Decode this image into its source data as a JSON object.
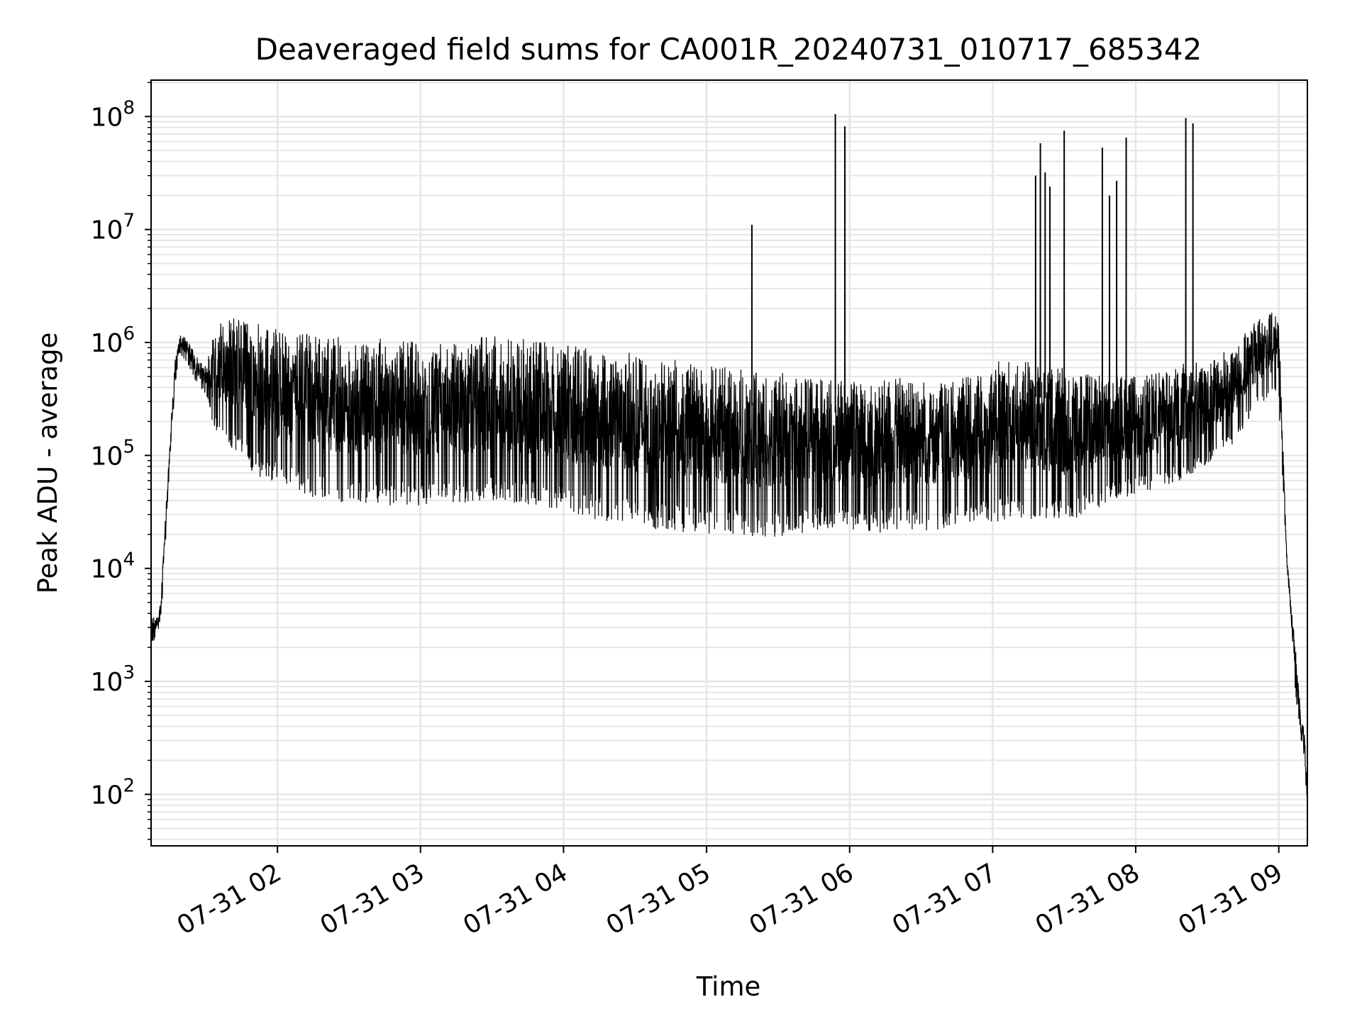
{
  "chart_data": {
    "type": "line",
    "title": "Deaveraged field sums for CA001R_20240731_010717_685342",
    "xlabel": "Time",
    "ylabel": "Peak ADU - average",
    "yscale": "log",
    "xlim": [
      "2024-07-31 01:07",
      "2024-07-31 09:12"
    ],
    "ylim": [
      35,
      210000000
    ],
    "grid": true,
    "x_ticks": [
      "07-31 02",
      "07-31 03",
      "07-31 04",
      "07-31 05",
      "07-31 06",
      "07-31 07",
      "07-31 08",
      "07-31 09"
    ],
    "y_ticks": [
      {
        "base": "10",
        "exp": "2"
      },
      {
        "base": "10",
        "exp": "3"
      },
      {
        "base": "10",
        "exp": "4"
      },
      {
        "base": "10",
        "exp": "5"
      },
      {
        "base": "10",
        "exp": "6"
      },
      {
        "base": "10",
        "exp": "7"
      },
      {
        "base": "10",
        "exp": "8"
      }
    ],
    "series": [
      {
        "color": "#000000",
        "envelope": {
          "time": [
            "01:07",
            "01:09",
            "01:11",
            "01:13",
            "01:15",
            "01:17",
            "01:19",
            "01:21",
            "01:24",
            "01:27",
            "01:30",
            "01:33",
            "01:36",
            "01:40",
            "01:45",
            "01:50",
            "01:55",
            "02:00",
            "02:10",
            "02:20",
            "02:30",
            "02:40",
            "02:50",
            "03:00",
            "03:10",
            "03:20",
            "03:30",
            "03:40",
            "03:50",
            "04:00",
            "04:10",
            "04:20",
            "04:30",
            "04:40",
            "04:50",
            "05:00",
            "05:10",
            "05:20",
            "05:30",
            "05:40",
            "05:50",
            "06:00",
            "06:10",
            "06:20",
            "06:30",
            "06:40",
            "06:50",
            "07:00",
            "07:10",
            "07:20",
            "07:30",
            "07:40",
            "07:50",
            "08:00",
            "08:10",
            "08:20",
            "08:30",
            "08:40",
            "08:50",
            "08:55",
            "09:00",
            "09:03",
            "09:05",
            "09:07",
            "09:09",
            "09:11",
            "09:12"
          ],
          "high": [
            4000,
            3500,
            5000,
            30000,
            150000,
            700000,
            1200000,
            1150000,
            900000,
            700000,
            600000,
            1200000,
            1600000,
            1700000,
            1600000,
            1500000,
            1400000,
            1300000,
            1200000,
            1150000,
            1100000,
            1100000,
            1050000,
            1000000,
            1050000,
            1100000,
            1150000,
            1100000,
            1050000,
            1000000,
            900000,
            850000,
            800000,
            750000,
            700000,
            650000,
            600000,
            550000,
            550000,
            500000,
            500000,
            450000,
            450000,
            500000,
            450000,
            450000,
            500000,
            700000,
            700000,
            650000,
            600000,
            550000,
            500000,
            500000,
            550000,
            650000,
            700000,
            900000,
            1500000,
            1900000,
            1800000,
            20000,
            5000,
            2000,
            600,
            350,
            100
          ],
          "low": [
            2000,
            2500,
            3000,
            15000,
            100000,
            400000,
            800000,
            700000,
            550000,
            400000,
            350000,
            180000,
            150000,
            120000,
            90000,
            70000,
            60000,
            55000,
            45000,
            40000,
            38000,
            35000,
            35000,
            35000,
            36000,
            38000,
            40000,
            38000,
            35000,
            32000,
            28000,
            25000,
            24000,
            22000,
            21000,
            20000,
            20000,
            19000,
            19000,
            20000,
            22000,
            21000,
            20000,
            22000,
            21000,
            22000,
            25000,
            25000,
            28000,
            27000,
            26000,
            30000,
            40000,
            45000,
            50000,
            60000,
            80000,
            120000,
            250000,
            300000,
            300000,
            15000,
            3000,
            800,
            250,
            150,
            70
          ]
        },
        "peaks": [
          {
            "time": "05:19",
            "value": 11000000
          },
          {
            "time": "05:54",
            "value": 105000000
          },
          {
            "time": "05:58",
            "value": 82000000
          },
          {
            "time": "07:18",
            "value": 30000000
          },
          {
            "time": "07:20",
            "value": 58000000
          },
          {
            "time": "07:22",
            "value": 32000000
          },
          {
            "time": "07:24",
            "value": 24000000
          },
          {
            "time": "07:30",
            "value": 75000000
          },
          {
            "time": "07:46",
            "value": 53000000
          },
          {
            "time": "07:49",
            "value": 20000000
          },
          {
            "time": "07:52",
            "value": 27000000
          },
          {
            "time": "07:56",
            "value": 65000000
          },
          {
            "time": "08:21",
            "value": 97000000
          },
          {
            "time": "08:24",
            "value": 87000000
          }
        ]
      }
    ]
  }
}
